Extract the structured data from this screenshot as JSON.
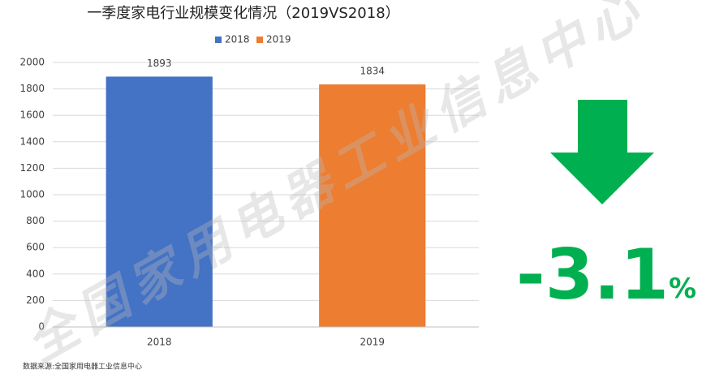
{
  "chart_data": {
    "type": "bar",
    "title": "一季度家电行业规模变化情况（2019VS2018）",
    "categories": [
      "2018",
      "2019"
    ],
    "series": [
      {
        "name": "2018",
        "color": "#4472c4",
        "values": [
          1893,
          null
        ]
      },
      {
        "name": "2019",
        "color": "#ed7d31",
        "values": [
          null,
          1834
        ]
      }
    ],
    "ylim": [
      0,
      2000
    ],
    "yticks": [
      0,
      200,
      400,
      600,
      800,
      1000,
      1200,
      1400,
      1600,
      1800,
      2000
    ],
    "grid": true,
    "legend": "top",
    "annotation": "-3.1%",
    "annotation_color": "#00b050",
    "source": "数据来源:全国家用电器工业信息中心",
    "watermark": "全国家用电器工业信息中心"
  }
}
